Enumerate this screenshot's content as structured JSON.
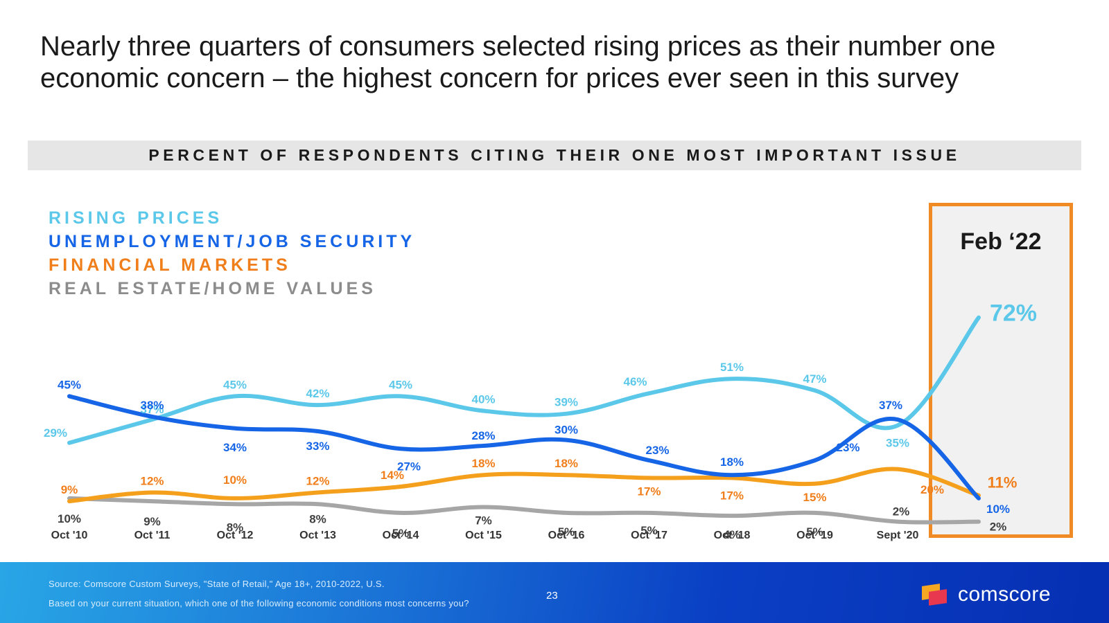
{
  "headline": {
    "line1": "Nearly three quarters of consumers selected rising prices as their number one",
    "line2": "economic concern – the highest concern for prices ever seen in this survey"
  },
  "banner": "PERCENT OF RESPONDENTS CITING THEIR ONE MOST IMPORTANT ISSUE",
  "highlight_label": "Feb ‘22",
  "footer": {
    "source": "Source: Comscore Custom Surveys, \"State of Retail,\" Age 18+, 2010-2022, U.S.",
    "question": "Based on your current situation, which one of the following economic conditions most concerns you?",
    "page_number": "23",
    "logo_text": "comscore"
  },
  "chart_data": {
    "type": "line",
    "categories": [
      "Oct '10",
      "Oct '11",
      "Oct '12",
      "Oct '13",
      "Oct '14",
      "Oct '15",
      "Oct '16",
      "Oct '17",
      "Oct '18",
      "Oct '19",
      "Sept '20",
      "Feb '22"
    ],
    "x_tick_labels": [
      "Oct '10",
      "Oct '11",
      "Oct '12",
      "Oct '13",
      "Oct '14",
      "Oct '15",
      "Oct '16",
      "Oct '17",
      "Oct '18",
      "Oct '19",
      "Sept '20"
    ],
    "ylim": [
      0,
      80
    ],
    "grid": false,
    "legend_placement": "top-left",
    "series": [
      {
        "name": "RISING PRICES",
        "color": "#5bc8ea",
        "values": [
          29,
          37,
          45,
          42,
          45,
          40,
          39,
          46,
          51,
          47,
          35,
          72
        ],
        "labels": [
          "29%",
          "37%",
          "45%",
          "42%",
          "45%",
          "40%",
          "39%",
          "46%",
          "51%",
          "47%",
          "35%",
          "72%"
        ]
      },
      {
        "name": "UNEMPLOYMENT/JOB SECURITY",
        "color": "#1565e6",
        "values": [
          45,
          38,
          34,
          33,
          27,
          28,
          30,
          23,
          18,
          23,
          37,
          10
        ],
        "labels": [
          "45%",
          "38%",
          "34%",
          "33%",
          "27%",
          "28%",
          "30%",
          "23%",
          "18%",
          "23%",
          "37%",
          "10%"
        ]
      },
      {
        "name": "FINANCIAL MARKETS",
        "color": "#f5a01d",
        "label_color": "#f07e1b",
        "values": [
          9,
          12,
          10,
          12,
          14,
          18,
          18,
          17,
          17,
          15,
          20,
          11
        ],
        "labels": [
          "9%",
          "12%",
          "10%",
          "12%",
          "14%",
          "18%",
          "18%",
          "17%",
          "17%",
          "15%",
          "20%",
          "11%"
        ]
      },
      {
        "name": "REAL ESTATE/HOME VALUES",
        "color": "#a6a6a6",
        "label_color": "#404040",
        "values": [
          10,
          9,
          8,
          8,
          5,
          7,
          5,
          5,
          4,
          5,
          2,
          2
        ],
        "labels": [
          "10%",
          "9%",
          "8%",
          "8%",
          "5%",
          "7%",
          "5%",
          "5%",
          "4%",
          "5%",
          "2%",
          "2%"
        ]
      }
    ]
  }
}
